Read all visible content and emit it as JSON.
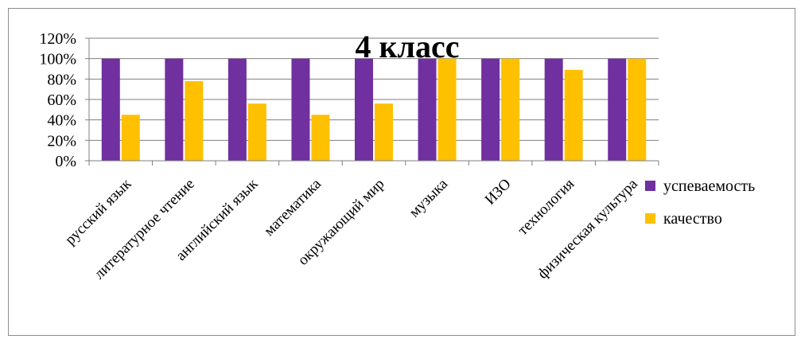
{
  "chart_data": {
    "type": "bar",
    "title": "4 класс",
    "categories": [
      "русский язык",
      "литературное чтение",
      "английский язык",
      "математика",
      "окружающий мир",
      "музыка",
      "ИЗО",
      "технология",
      "физическая культура"
    ],
    "series": [
      {
        "name": "успеваемость",
        "color": "#7030a0",
        "values": [
          100,
          100,
          100,
          100,
          100,
          100,
          100,
          100,
          100
        ]
      },
      {
        "name": "качество",
        "color": "#ffc000",
        "values": [
          45,
          78,
          56,
          45,
          56,
          100,
          100,
          89,
          100
        ]
      }
    ],
    "ylim": [
      0,
      120
    ],
    "yticks": [
      "0%",
      "20%",
      "40%",
      "60%",
      "80%",
      "100%",
      "120%"
    ],
    "grid": true,
    "legend": "right",
    "xlabel": "",
    "ylabel": ""
  }
}
